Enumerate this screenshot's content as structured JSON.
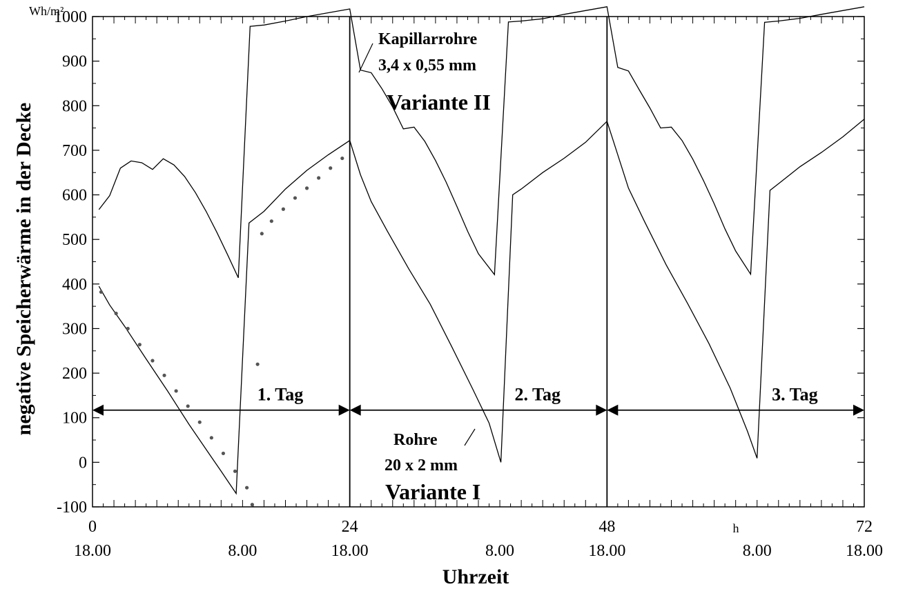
{
  "chart_data": {
    "type": "line",
    "xlabel": "Uhrzeit",
    "ylabel": "negative Speicherwärme in der Decke",
    "yunit": "Wh/m²",
    "xunit": "h",
    "xlim": [
      0,
      72
    ],
    "ylim": [
      -100,
      1000
    ],
    "grid": false,
    "y_ticks": [
      -100,
      0,
      100,
      200,
      300,
      400,
      500,
      600,
      700,
      800,
      900,
      1000
    ],
    "x_ticks": [
      {
        "value": 0,
        "hour_label": "0",
        "time_label": "18.00"
      },
      {
        "value": 14,
        "hour_label": "",
        "time_label": "8.00"
      },
      {
        "value": 24,
        "hour_label": "24",
        "time_label": "18.00"
      },
      {
        "value": 38,
        "hour_label": "",
        "time_label": "8.00"
      },
      {
        "value": 48,
        "hour_label": "48",
        "time_label": "18.00"
      },
      {
        "value": 62,
        "hour_label": "",
        "time_label": "8.00"
      },
      {
        "value": 72,
        "hour_label": "72",
        "time_label": "18.00"
      }
    ],
    "day_boundaries": [
      24,
      48
    ],
    "days": [
      {
        "label": "1. Tag",
        "from": 0,
        "to": 24,
        "y": 117
      },
      {
        "label": "2. Tag",
        "from": 24,
        "to": 48,
        "y": 117
      },
      {
        "label": "3. Tag",
        "from": 48,
        "to": 72,
        "y": 117
      }
    ],
    "annotations": [
      {
        "lines": [
          "Kapillarrohre",
          "3,4 x 0,55 mm"
        ],
        "variant": "Variante II"
      },
      {
        "lines": [
          "Rohre",
          "20 x 2 mm"
        ],
        "variant": "Variante I"
      }
    ],
    "series": [
      {
        "style": "line",
        "points": [
          [
            0.6,
            567
          ],
          [
            1.6,
            598
          ],
          [
            2.6,
            660
          ],
          [
            3.6,
            676
          ],
          [
            4.6,
            672
          ],
          [
            5.6,
            657
          ],
          [
            6.6,
            681
          ],
          [
            7.6,
            667
          ],
          [
            8.6,
            641
          ],
          [
            9.6,
            605
          ],
          [
            10.6,
            563
          ],
          [
            11.6,
            516
          ],
          [
            12.6,
            466
          ],
          [
            13.6,
            414
          ],
          [
            14.7,
            978
          ],
          [
            16,
            981
          ],
          [
            18,
            990
          ],
          [
            20,
            1000
          ],
          [
            24,
            1017
          ],
          [
            25,
            880
          ],
          [
            26,
            874
          ],
          [
            27,
            838
          ],
          [
            28,
            797
          ],
          [
            29,
            748
          ],
          [
            30,
            752
          ],
          [
            31,
            720
          ],
          [
            32,
            677
          ],
          [
            33,
            628
          ],
          [
            34,
            574
          ],
          [
            35,
            518
          ],
          [
            36,
            468
          ],
          [
            37.5,
            421
          ],
          [
            38.8,
            988
          ],
          [
            40,
            990
          ],
          [
            42,
            995
          ],
          [
            44,
            1005
          ],
          [
            48,
            1022
          ],
          [
            49,
            886
          ],
          [
            50,
            878
          ],
          [
            51,
            836
          ],
          [
            52,
            795
          ],
          [
            53,
            750
          ],
          [
            54,
            752
          ],
          [
            55,
            722
          ],
          [
            56,
            680
          ],
          [
            57,
            632
          ],
          [
            58,
            580
          ],
          [
            59,
            524
          ],
          [
            60,
            474
          ],
          [
            61.4,
            422
          ],
          [
            62.7,
            987
          ],
          [
            64,
            990
          ],
          [
            66,
            996
          ],
          [
            68,
            1005
          ],
          [
            72,
            1022
          ]
        ]
      },
      {
        "style": "line",
        "points": [
          [
            0.6,
            395
          ],
          [
            1.6,
            353
          ],
          [
            3,
            305
          ],
          [
            5,
            232
          ],
          [
            7,
            160
          ],
          [
            9,
            85
          ],
          [
            11,
            15
          ],
          [
            12,
            -20
          ],
          [
            13.4,
            -70
          ],
          [
            14.6,
            537
          ],
          [
            16,
            563
          ],
          [
            18,
            613
          ],
          [
            20,
            655
          ],
          [
            22,
            690
          ],
          [
            24,
            722
          ],
          [
            25,
            645
          ],
          [
            26,
            585
          ],
          [
            27.5,
            519
          ],
          [
            29.5,
            434
          ],
          [
            31.5,
            355
          ],
          [
            33.5,
            260
          ],
          [
            35.5,
            163
          ],
          [
            37,
            88
          ],
          [
            38.1,
            0
          ],
          [
            39.2,
            600
          ],
          [
            40,
            613
          ],
          [
            42,
            650
          ],
          [
            44,
            682
          ],
          [
            46,
            718
          ],
          [
            48,
            765
          ],
          [
            49,
            690
          ],
          [
            50,
            615
          ],
          [
            51.5,
            540
          ],
          [
            53.5,
            444
          ],
          [
            55.5,
            357
          ],
          [
            57.5,
            267
          ],
          [
            59.5,
            166
          ],
          [
            61.1,
            70
          ],
          [
            62,
            9
          ],
          [
            63.2,
            610
          ],
          [
            64,
            625
          ],
          [
            66,
            663
          ],
          [
            68,
            695
          ],
          [
            70,
            730
          ],
          [
            72,
            770
          ]
        ]
      },
      {
        "style": "dots",
        "points": [
          [
            0.8,
            382
          ],
          [
            2.2,
            334
          ],
          [
            3.3,
            300
          ],
          [
            4.4,
            264
          ],
          [
            5.6,
            228
          ],
          [
            6.7,
            195
          ],
          [
            7.8,
            160
          ],
          [
            8.9,
            126
          ],
          [
            10,
            90
          ],
          [
            11.1,
            55
          ],
          [
            12.2,
            20
          ],
          [
            13.3,
            -20
          ],
          [
            14.4,
            -57
          ],
          [
            14.9,
            -95
          ],
          [
            15.4,
            220
          ],
          [
            15.8,
            513
          ],
          [
            16.7,
            541
          ],
          [
            17.8,
            568
          ],
          [
            18.9,
            593
          ],
          [
            20,
            615
          ],
          [
            21.1,
            638
          ],
          [
            22.2,
            660
          ],
          [
            23.3,
            682
          ]
        ]
      }
    ]
  }
}
